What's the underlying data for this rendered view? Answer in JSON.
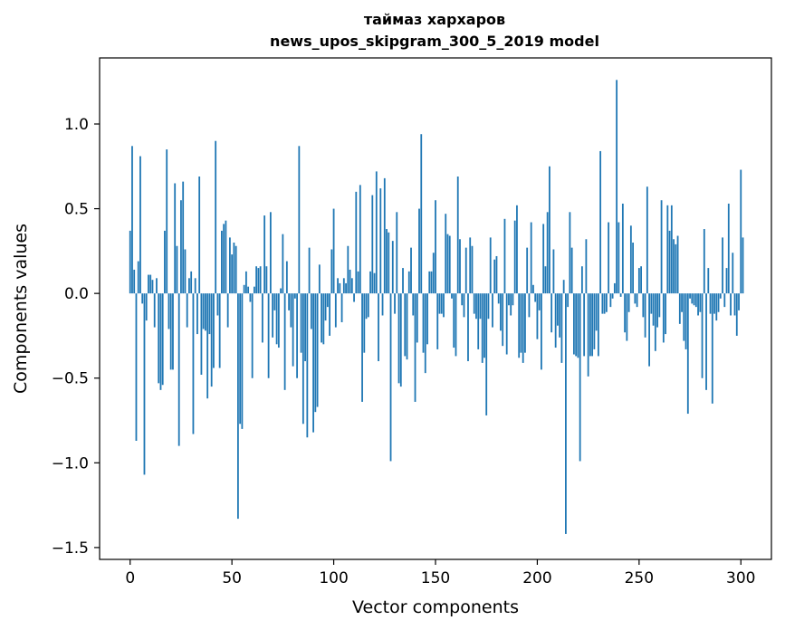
{
  "chart_data": {
    "type": "bar",
    "title": "таймаз хархаров",
    "subtitle": "news_upos_skipgram_300_5_2019 model",
    "xlabel": "Vector components",
    "ylabel": "Components values",
    "xlim": [
      -15,
      315
    ],
    "ylim": [
      -1.57,
      1.39
    ],
    "xticks": [
      0,
      50,
      100,
      150,
      200,
      250,
      300
    ],
    "yticks": [
      -1.5,
      -1.0,
      -0.5,
      0.0,
      0.5,
      1.0
    ],
    "ytick_labels": [
      "−1.5",
      "−1.0",
      "−0.5",
      "0.0",
      "0.5",
      "1.0"
    ],
    "grid": false,
    "color": "#1f77b4",
    "values": [
      0.37,
      0.87,
      0.14,
      -0.87,
      0.19,
      0.81,
      -0.06,
      -1.07,
      -0.16,
      0.11,
      0.11,
      0.08,
      -0.2,
      0.09,
      -0.53,
      -0.57,
      -0.54,
      0.37,
      0.85,
      -0.21,
      -0.45,
      -0.45,
      0.65,
      0.28,
      -0.9,
      0.55,
      0.66,
      0.26,
      -0.2,
      0.09,
      0.13,
      -0.83,
      0.09,
      -0.24,
      0.69,
      -0.48,
      -0.21,
      -0.22,
      -0.62,
      -0.24,
      -0.55,
      -0.44,
      0.9,
      -0.13,
      -0.44,
      0.37,
      0.41,
      0.43,
      -0.2,
      0.33,
      0.23,
      0.3,
      0.28,
      -1.33,
      -0.77,
      -0.8,
      0.05,
      0.13,
      0.04,
      -0.05,
      -0.5,
      0.04,
      0.16,
      0.15,
      0.16,
      -0.29,
      0.46,
      0.16,
      -0.5,
      0.48,
      -0.26,
      -0.1,
      -0.3,
      -0.32,
      0.03,
      0.35,
      -0.57,
      0.19,
      -0.1,
      -0.2,
      -0.43,
      -0.03,
      -0.5,
      0.87,
      -0.35,
      -0.77,
      -0.4,
      -0.85,
      0.27,
      -0.21,
      -0.82,
      -0.7,
      -0.67,
      0.17,
      -0.29,
      -0.3,
      -0.16,
      -0.08,
      -0.25,
      0.26,
      0.5,
      -0.2,
      0.09,
      0.06,
      -0.17,
      0.09,
      0.06,
      0.28,
      0.14,
      0.09,
      -0.05,
      0.6,
      0.13,
      0.64,
      -0.64,
      -0.35,
      -0.15,
      -0.14,
      0.13,
      0.58,
      0.12,
      0.72,
      -0.4,
      0.62,
      -0.13,
      0.68,
      0.38,
      0.36,
      -0.99,
      0.31,
      -0.12,
      0.48,
      -0.53,
      -0.55,
      0.15,
      -0.37,
      -0.39,
      0.13,
      0.27,
      -0.13,
      -0.64,
      -0.29,
      0.5,
      0.94,
      -0.35,
      -0.47,
      -0.3,
      0.13,
      0.13,
      0.24,
      0.55,
      -0.33,
      -0.12,
      -0.12,
      -0.14,
      0.47,
      0.35,
      0.34,
      -0.03,
      -0.32,
      -0.37,
      0.69,
      0.32,
      -0.07,
      -0.14,
      0.27,
      -0.4,
      0.33,
      0.28,
      -0.12,
      -0.15,
      -0.33,
      -0.15,
      -0.41,
      -0.38,
      -0.72,
      -0.15,
      0.33,
      -0.2,
      0.2,
      0.22,
      -0.06,
      -0.22,
      -0.31,
      0.44,
      -0.36,
      -0.07,
      -0.13,
      -0.07,
      0.43,
      0.52,
      -0.38,
      -0.35,
      -0.41,
      -0.35,
      0.27,
      -0.14,
      0.42,
      0.05,
      -0.05,
      -0.27,
      -0.1,
      -0.45,
      0.41,
      0.16,
      0.48,
      0.75,
      -0.23,
      0.26,
      -0.32,
      -0.19,
      -0.26,
      -0.41,
      0.08,
      -1.42,
      -0.08,
      0.48,
      0.27,
      -0.36,
      -0.37,
      -0.38,
      -0.99,
      0.16,
      -0.37,
      0.32,
      -0.49,
      -0.37,
      -0.37,
      -0.33,
      -0.22,
      -0.37,
      0.84,
      -0.12,
      -0.12,
      -0.11,
      0.42,
      -0.08,
      -0.03,
      0.06,
      1.26,
      0.42,
      -0.02,
      0.53,
      -0.23,
      -0.28,
      -0.11,
      0.4,
      0.3,
      -0.06,
      -0.08,
      0.15,
      0.16,
      -0.14,
      -0.26,
      0.63,
      -0.43,
      -0.12,
      -0.19,
      -0.34,
      -0.2,
      -0.14,
      0.55,
      -0.29,
      -0.24,
      0.52,
      0.37,
      0.52,
      0.32,
      0.29,
      0.34,
      -0.18,
      -0.11,
      -0.28,
      -0.33,
      -0.71,
      -0.03,
      -0.06,
      -0.07,
      -0.08,
      -0.13,
      -0.11,
      -0.5,
      0.38,
      -0.57,
      0.15,
      -0.12,
      -0.65,
      -0.12,
      -0.16,
      -0.11,
      -0.03,
      0.33,
      -0.08,
      0.15,
      0.53,
      -0.13,
      0.24,
      -0.13,
      -0.25,
      -0.1,
      0.73,
      0.33
    ]
  }
}
